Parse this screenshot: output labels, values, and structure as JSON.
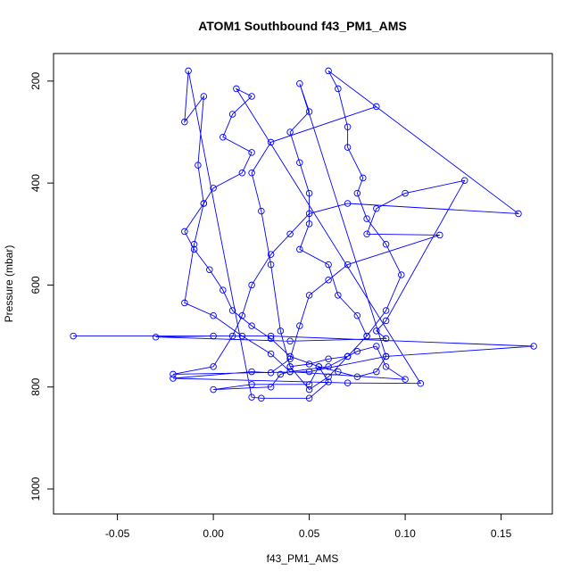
{
  "chart_data": {
    "type": "line",
    "title": "ATOM1 Southbound f43_PM1_AMS",
    "x_label": "f43_PM1_AMS",
    "y_label": "Pressure (mbar)",
    "xlim": [
      -0.0833,
      0.1767
    ],
    "ylim": [
      146,
      1049
    ],
    "y_reversed": true,
    "xticks": [
      -0.05,
      {
        "value": 0,
        "label": "0.00"
      },
      0.05,
      {
        "value": 0.1,
        "label": "0.10"
      },
      0.15
    ],
    "yticks": [
      200,
      400,
      600,
      800,
      1000
    ],
    "marker": "circle",
    "x": [
      0.085,
      0.03,
      0.02,
      0.025,
      0.03,
      0.035,
      0.04,
      0.05,
      0.06,
      0.07,
      0.08,
      0.09,
      0.098,
      0.09,
      0.08,
      0.075,
      0.078,
      0.07,
      0.07,
      0.065,
      0.06,
      0.159,
      0.07,
      0.05,
      0.04,
      0.03,
      0.02,
      0.015,
      0.01,
      0.0,
      -0.021,
      0.05,
      0.09,
      0.167,
      0.03,
      -0.073,
      0.0,
      -0.03,
      0.04,
      0.09,
      0.085,
      0.09,
      0.131,
      0.1,
      0.085,
      0.08,
      0.118,
      0.07,
      0.06,
      0.05,
      0.045,
      0.04,
      0.03,
      0.02,
      -0.021,
      0.07,
      0.108,
      0.012,
      0.02,
      0.01,
      0.005,
      0.02,
      0.015,
      0.0,
      -0.005,
      -0.015,
      -0.01,
      -0.002,
      0.005,
      0.01,
      0.02,
      0.03,
      0.04,
      0.055,
      0.06,
      0.05,
      0.025,
      0.02,
      -0.013,
      -0.015,
      -0.005,
      -0.008,
      -0.005,
      -0.01,
      -0.015,
      0.0,
      0.015,
      0.03,
      0.04,
      0.06,
      0.075,
      0.085,
      0.09,
      0.1,
      0.04,
      0.035,
      0.03,
      0.0,
      0.02,
      0.05,
      0.055,
      0.065,
      0.075,
      0.085,
      0.09,
      0.045,
      0.05,
      0.04,
      0.045,
      0.05,
      0.05,
      0.045,
      0.06,
      0.065,
      0.075,
      0.08,
      0.07,
      0.06,
      0.05,
      0.04
    ],
    "series": [
      {
        "color": "#0000ff",
        "values": [
          250,
          320,
          380,
          455,
          560,
          690,
          760,
          805,
          780,
          740,
          700,
          650,
          580,
          520,
          470,
          420,
          390,
          330,
          290,
          215,
          180,
          460,
          440,
          460,
          500,
          540,
          600,
          660,
          700,
          760,
          775,
          770,
          740,
          720,
          700,
          700,
          700,
          702,
          710,
          705,
          690,
          670,
          395,
          420,
          450,
          500,
          502,
          560,
          590,
          620,
          680,
          745,
          772,
          770,
          783,
          792,
          793,
          215,
          230,
          265,
          310,
          340,
          380,
          410,
          440,
          495,
          530,
          570,
          610,
          650,
          680,
          705,
          740,
          760,
          790,
          822,
          822,
          820,
          180,
          280,
          230,
          365,
          440,
          520,
          635,
          660,
          700,
          735,
          770,
          760,
          730,
          720,
          760,
          785,
          770,
          775,
          800,
          805,
          795,
          795,
          760,
          770,
          780,
          770,
          740,
          205,
          260,
          300,
          360,
          420,
          480,
          530,
          560,
          620,
          660,
          700,
          740,
          745,
          755,
          760
        ]
      }
    ]
  }
}
